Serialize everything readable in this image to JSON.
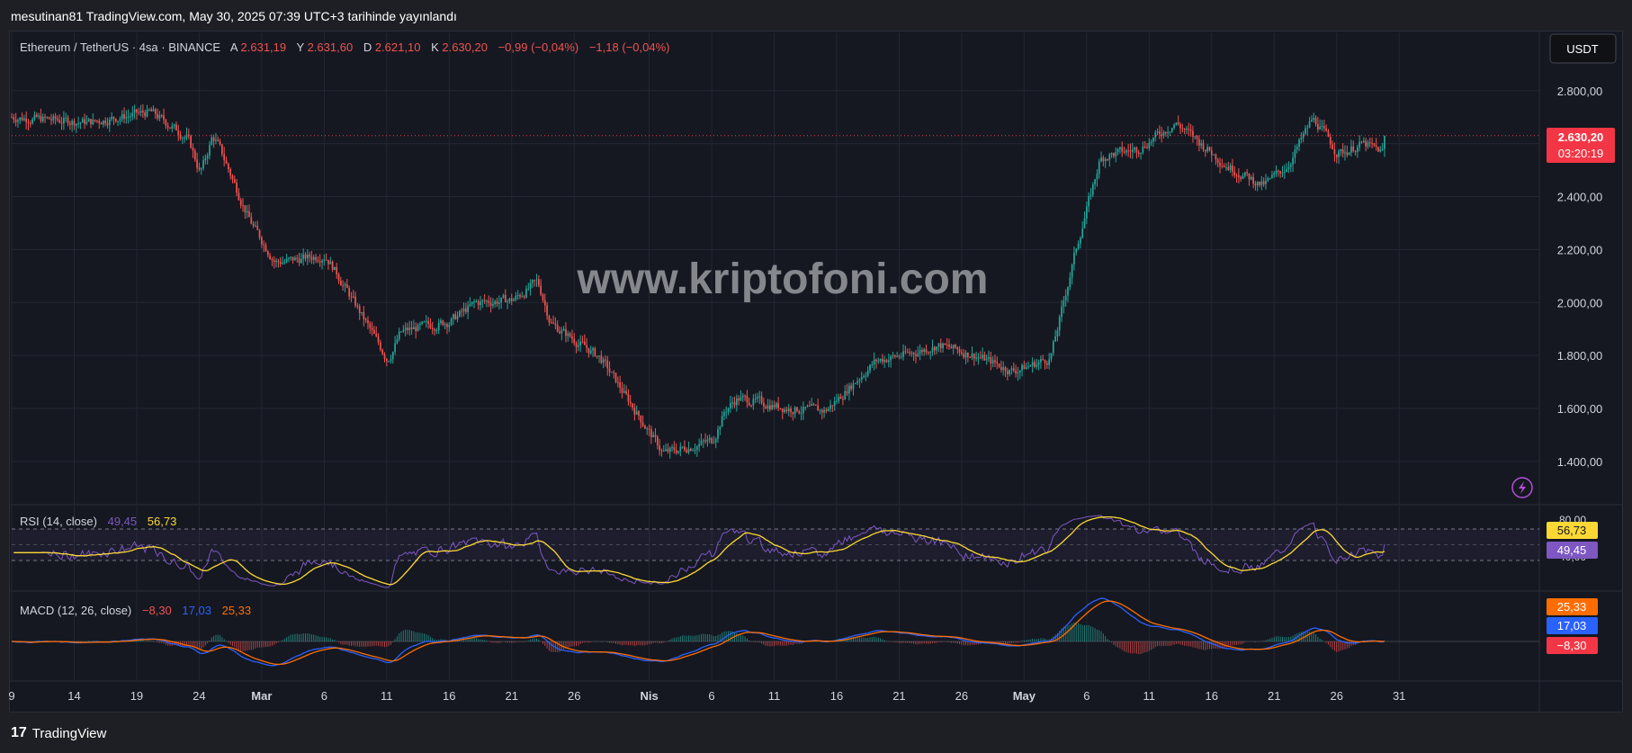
{
  "header": {
    "published_line": "mesutinan81 TradingView.com, May 30, 2025 07:39 UTC+3 tarihinde yayınlandı"
  },
  "footer": {
    "logo_text": "TradingView",
    "logo_mark": "17"
  },
  "watermark": "www.kriptofoni.com",
  "currency_button": "USDT",
  "colors": {
    "bg": "#151821",
    "up": "#26a69a",
    "down": "#ef5350",
    "grid": "#232733",
    "rsi": "#7e57c2",
    "rsi_ma": "#fdd835",
    "macd": "#2962ff",
    "signal": "#ff6d00"
  },
  "chart_data": [
    {
      "type": "candlestick",
      "symbol_line": {
        "name": "Ethereum / TetherUS · 4sa · BINANCE",
        "open_label": "A",
        "open": "2.631,19",
        "high_label": "Y",
        "high": "2.631,60",
        "low_label": "D",
        "low": "2.621,10",
        "close_label": "K",
        "close": "2.630,20",
        "change": "−0,99 (−0,04%)",
        "change2": "−1,18 (−0,04%)"
      },
      "y_ticks": [
        "2.800,00",
        "2.600,00",
        "2.400,00",
        "2.200,00",
        "2.000,00",
        "1.800,00",
        "1.600,00",
        "1.400,00"
      ],
      "y_tick_values": [
        2800,
        2600,
        2400,
        2200,
        2000,
        1800,
        1600,
        1400
      ],
      "ylim": [
        1240,
        3020
      ],
      "last_price_label": "2.630,20",
      "last_price": 2630.2,
      "countdown": "03:20:19",
      "x_ticks": [
        "9",
        "14",
        "19",
        "24",
        "Mar",
        "6",
        "11",
        "16",
        "21",
        "26",
        "Nis",
        "6",
        "11",
        "16",
        "21",
        "26",
        "May",
        "6",
        "11",
        "16",
        "21",
        "26",
        "31"
      ],
      "x_tick_bold": [
        false,
        false,
        false,
        false,
        true,
        false,
        false,
        false,
        false,
        false,
        true,
        false,
        false,
        false,
        false,
        false,
        true,
        false,
        false,
        false,
        false,
        false,
        false
      ],
      "close_path_days": [
        0,
        6,
        11,
        14,
        15,
        16,
        19,
        21,
        25,
        26,
        30,
        31,
        35,
        37,
        40,
        42,
        43,
        47,
        52,
        56,
        57,
        58,
        62,
        65,
        69,
        72,
        74,
        77,
        80,
        83,
        85,
        87,
        90,
        93,
        95,
        97,
        100,
        102,
        104,
        106,
        108,
        110,
        113,
        116
      ],
      "close_path_values": [
        2700,
        2680,
        2720,
        2620,
        2480,
        2640,
        2300,
        2150,
        2180,
        2100,
        1780,
        1890,
        1930,
        2000,
        2010,
        2080,
        1920,
        1790,
        1430,
        1480,
        1600,
        1640,
        1600,
        1590,
        1780,
        1810,
        1840,
        1800,
        1740,
        1790,
        2200,
        2550,
        2580,
        2680,
        2600,
        2520,
        2440,
        2520,
        2700,
        2560,
        2600,
        2560,
        2700,
        2630
      ]
    },
    {
      "type": "line",
      "title": "RSI (14, close)",
      "value_rsi": "49,45",
      "value_ma": "56,73",
      "ticks": [
        "80,00",
        "40,00"
      ],
      "ylim": [
        20,
        100
      ]
    },
    {
      "type": "line",
      "title": "MACD (12, 26, close)",
      "value_hist": "−8,30",
      "value_macd": "17,03",
      "value_signal": "25,33"
    }
  ]
}
